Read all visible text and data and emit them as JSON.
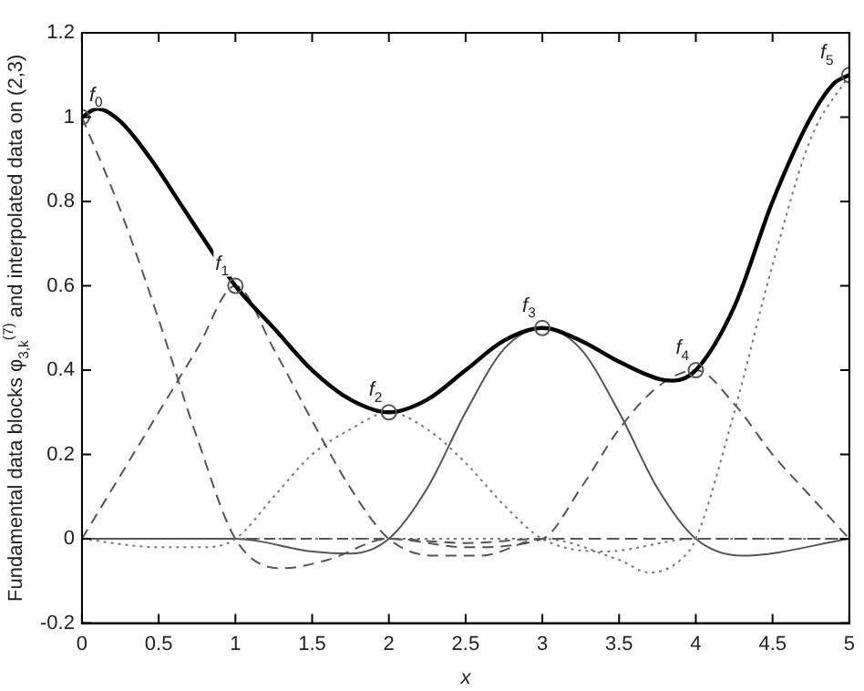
{
  "chart_data": {
    "type": "line",
    "xlabel": "x",
    "ylabel": "Fundamental data blocks φ$_{3,k}$$^{(7)}$ and interpolated data on (2,3)",
    "xlim": [
      0,
      5
    ],
    "ylim": [
      -0.2,
      1.2
    ],
    "xticks": [
      0,
      0.5,
      1,
      1.5,
      2,
      2.5,
      3,
      3.5,
      4,
      4.5,
      5
    ],
    "yticks": [
      -0.2,
      0,
      0.2,
      0.4,
      0.6,
      0.8,
      1,
      1.2
    ],
    "grid": false,
    "legend": false,
    "marker": "none",
    "series": [
      {
        "color": "#000000",
        "line_style": "solid",
        "x": [
          0,
          0.1,
          0.25,
          0.45,
          0.65,
          0.85,
          1,
          1.25,
          1.5,
          1.75,
          2,
          2.25,
          2.5,
          2.75,
          3,
          3.25,
          3.5,
          3.75,
          3.85,
          4,
          4.25,
          4.5,
          4.75,
          4.9,
          5
        ],
        "values": [
          1,
          1.02,
          0.99,
          0.9,
          0.79,
          0.68,
          0.6,
          0.5,
          0.4,
          0.33,
          0.3,
          0.33,
          0.4,
          0.47,
          0.5,
          0.47,
          0.42,
          0.38,
          0.375,
          0.4,
          0.55,
          0.8,
          1,
          1.08,
          1.1
        ]
      },
      {
        "color": "#555555",
        "line_style": "dashed",
        "x": [
          0,
          0.25,
          0.5,
          0.75,
          1,
          1.3,
          1.6,
          2,
          2.5,
          3,
          5
        ],
        "values": [
          1,
          0.78,
          0.52,
          0.24,
          0,
          -0.07,
          -0.05,
          0,
          -0.01,
          0,
          0
        ]
      },
      {
        "color": "#555555",
        "line_style": "dashed",
        "x": [
          0,
          0.25,
          0.5,
          0.75,
          1,
          1.25,
          1.5,
          1.75,
          2,
          2.3,
          2.6,
          3,
          5
        ],
        "values": [
          0,
          0.15,
          0.3,
          0.45,
          0.6,
          0.45,
          0.28,
          0.12,
          0,
          -0.04,
          -0.04,
          0,
          0
        ]
      },
      {
        "color": "#777777",
        "line_style": "dotted",
        "x": [
          0,
          0.5,
          0.8,
          1,
          1.25,
          1.5,
          1.75,
          2,
          2.25,
          2.5,
          2.75,
          3,
          3.4,
          4,
          5
        ],
        "values": [
          0,
          -0.02,
          -0.02,
          0,
          0.1,
          0.2,
          0.26,
          0.3,
          0.26,
          0.18,
          0.08,
          0,
          -0.03,
          0,
          0
        ]
      },
      {
        "color": "#555555",
        "line_style": "solid",
        "x": [
          0,
          1,
          1.5,
          1.75,
          2,
          2.25,
          2.5,
          2.75,
          3,
          3.25,
          3.5,
          3.75,
          4,
          4.3,
          5
        ],
        "values": [
          0,
          0,
          -0.03,
          -0.035,
          0,
          0.12,
          0.3,
          0.45,
          0.5,
          0.45,
          0.3,
          0.12,
          0,
          -0.04,
          0
        ]
      },
      {
        "color": "#555555",
        "line_style": "dashed",
        "x": [
          0,
          2,
          2.5,
          3,
          3.25,
          3.5,
          3.75,
          4,
          4.25,
          4.5,
          4.75,
          5
        ],
        "values": [
          0,
          0,
          -0.02,
          0,
          0.12,
          0.26,
          0.36,
          0.4,
          0.32,
          0.2,
          0.1,
          0
        ]
      },
      {
        "color": "#777777",
        "line_style": "dotted",
        "x": [
          0,
          3,
          3.5,
          3.7,
          3.9,
          4,
          4.25,
          4.5,
          4.75,
          5
        ],
        "values": [
          0,
          0,
          -0.05,
          -0.08,
          -0.05,
          0,
          0.3,
          0.65,
          0.95,
          1.1
        ]
      },
      {
        "type": "scatter",
        "color": "#555555",
        "marker": "circle",
        "x": [
          0,
          1,
          2,
          3,
          4,
          5
        ],
        "values": [
          1,
          0.6,
          0.3,
          0.5,
          0.4,
          1.1
        ]
      }
    ],
    "annotations": [
      {
        "text": "f$_{0}$",
        "x": 0,
        "y": 1
      },
      {
        "text": "f$_{1}$",
        "x": 1,
        "y": 0.6
      },
      {
        "text": "f$_{2}$",
        "x": 2,
        "y": 0.3
      },
      {
        "text": "f$_{3}$",
        "x": 3,
        "y": 0.5
      },
      {
        "text": "f$_{4}$",
        "x": 4,
        "y": 0.4
      },
      {
        "text": "f$_{5}$",
        "x": 5,
        "y": 1.1
      }
    ]
  }
}
